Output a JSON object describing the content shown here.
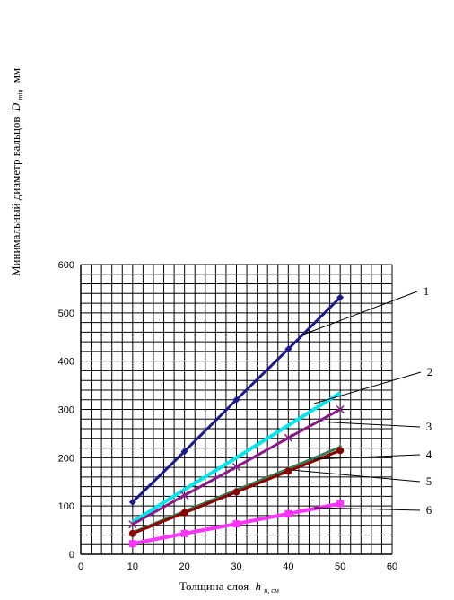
{
  "chart_data": {
    "type": "line",
    "title": "",
    "xlabel": "Толщина слоя",
    "xlabel_symbol": "h",
    "xlabel_symbol_sub": "н, см",
    "ylabel": "Минимальный диаметр вальцов",
    "ylabel_symbol": "D",
    "ylabel_symbol_sub": "min",
    "ylabel_unit": "мм",
    "xlim": [
      0,
      60
    ],
    "ylim": [
      0,
      600
    ],
    "xticks": [
      0,
      10,
      20,
      30,
      40,
      50,
      60
    ],
    "yticks": [
      0,
      100,
      200,
      300,
      400,
      500,
      600
    ],
    "grid": true,
    "x": [
      10,
      20,
      30,
      40,
      50
    ],
    "series": [
      {
        "name": "1",
        "values": [
          108,
          213,
          320,
          425,
          532
        ],
        "color": "#1a1a8c",
        "marker": "diamond"
      },
      {
        "name": "2",
        "values": [
          67,
          134,
          200,
          267,
          334
        ],
        "color": "#00e5ee",
        "marker": "none"
      },
      {
        "name": "3",
        "values": [
          62,
          122,
          181,
          241,
          300
        ],
        "color": "#8b1a89",
        "marker": "x"
      },
      {
        "name": "4",
        "values": [
          45,
          89,
          133,
          177,
          222
        ],
        "color": "#3a7a55",
        "marker": "triangle"
      },
      {
        "name": "5",
        "values": [
          43,
          86,
          129,
          172,
          215
        ],
        "color": "#8b0000",
        "marker": "circle"
      },
      {
        "name": "6",
        "values": [
          22,
          43,
          63,
          84,
          105
        ],
        "color": "#ff33ff",
        "marker": "square"
      }
    ]
  }
}
